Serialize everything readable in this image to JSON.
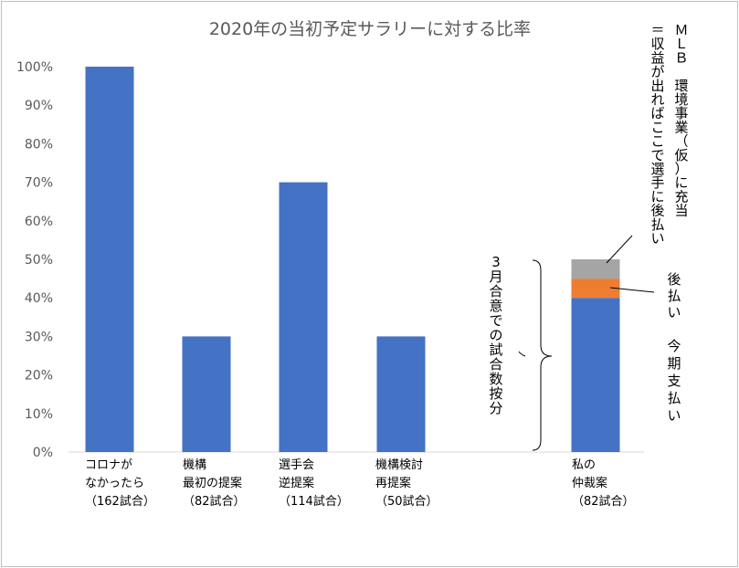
{
  "chart_data": {
    "type": "bar",
    "title": "2020年の当初予定サラリーに対する比率",
    "ylim": [
      0,
      100
    ],
    "yticks": [
      "0%",
      "10%",
      "20%",
      "30%",
      "40%",
      "50%",
      "60%",
      "70%",
      "80%",
      "90%",
      "100%"
    ],
    "grid": false,
    "categories": [
      [
        "コロナが",
        "なかったら",
        "（162試合）"
      ],
      [
        "機構",
        "最初の提案",
        "（82試合）"
      ],
      [
        "選手会",
        "逆提案",
        "（114試合）"
      ],
      [
        "機構検討",
        "再提案",
        "（50試合）"
      ],
      [
        "",
        "",
        ""
      ],
      [
        "私の",
        "仲裁案",
        "（82試合）"
      ]
    ],
    "series": [
      {
        "name": "今期支払い",
        "color": "#4472c4",
        "values": [
          100,
          30,
          70,
          30,
          0,
          40
        ]
      },
      {
        "name": "後払い",
        "color": "#ed7d31",
        "values": [
          0,
          0,
          0,
          0,
          0,
          5
        ]
      },
      {
        "name": "MLB環境事業（仮）に充当＝収益が出ればここで選手に後払い",
        "color": "#a5a5a5",
        "values": [
          0,
          0,
          0,
          0,
          0,
          5
        ]
      }
    ],
    "annotations": {
      "brace_label": "3月合意での試合数按分",
      "gray_label_lines": [
        "ＭＬＢ 環境事業（仮）に充当",
        "＝収益が出ればここで選手に後払い"
      ],
      "orange_label": "後払い",
      "blue_label": "今期支払い"
    }
  }
}
